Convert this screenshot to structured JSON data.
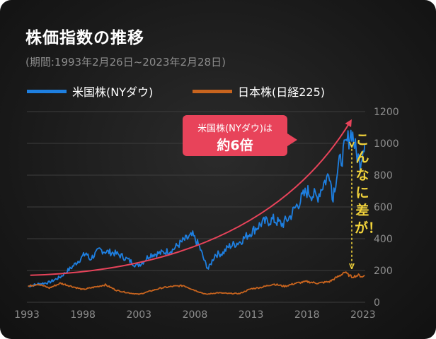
{
  "title": "株価指数の推移",
  "subtitle": "(期間:1993年2月26日~2023年2月28日)",
  "legend": {
    "us": "米国株(NYダウ)",
    "jp": "日本株(日経225)"
  },
  "colors": {
    "background": "#1c1c1c",
    "us": "#1e7fe0",
    "jp": "#c8641e",
    "trend_arrow": "#e8435a",
    "callout": "#e8435a",
    "annotation": "#f2d33b"
  },
  "callout": {
    "line1": "米国株(NYダウ)は",
    "line2": "約6倍"
  },
  "annotation": "こんなに差が！",
  "chart_data": {
    "type": "line",
    "xlim": [
      1993,
      2023.2
    ],
    "ylim": [
      0,
      1200
    ],
    "xticks": [
      1993,
      1998,
      2003,
      2008,
      2013,
      2018,
      2023
    ],
    "yticks": [
      0,
      200,
      400,
      600,
      800,
      1000,
      1200
    ],
    "grid": true,
    "legend_position": "top-left",
    "series": [
      {
        "name": "米国株(NYダウ)",
        "points": [
          [
            1993.1,
            100
          ],
          [
            1994,
            115
          ],
          [
            1995,
            125
          ],
          [
            1996,
            160
          ],
          [
            1997,
            220
          ],
          [
            1998.3,
            310
          ],
          [
            1998.6,
            270
          ],
          [
            1999.5,
            330
          ],
          [
            2000,
            320
          ],
          [
            2000.8,
            310
          ],
          [
            2001.5,
            290
          ],
          [
            2002.2,
            260
          ],
          [
            2002.8,
            230
          ],
          [
            2003.3,
            250
          ],
          [
            2004,
            300
          ],
          [
            2005,
            310
          ],
          [
            2006,
            330
          ],
          [
            2007,
            390
          ],
          [
            2007.8,
            420
          ],
          [
            2008.4,
            350
          ],
          [
            2008.9,
            250
          ],
          [
            2009.2,
            210
          ],
          [
            2009.8,
            300
          ],
          [
            2010.5,
            310
          ],
          [
            2011,
            350
          ],
          [
            2012,
            380
          ],
          [
            2013,
            440
          ],
          [
            2014,
            500
          ],
          [
            2015,
            520
          ],
          [
            2015.8,
            490
          ],
          [
            2016.5,
            540
          ],
          [
            2017,
            600
          ],
          [
            2018,
            700
          ],
          [
            2018.9,
            660
          ],
          [
            2019.5,
            750
          ],
          [
            2020.1,
            820
          ],
          [
            2020.25,
            650
          ],
          [
            2020.8,
            850
          ],
          [
            2021.5,
            990
          ],
          [
            2022,
            1080
          ],
          [
            2022.4,
            940
          ],
          [
            2022.75,
            880
          ],
          [
            2023.1,
            1010
          ],
          [
            2023.15,
            990
          ]
        ]
      },
      {
        "name": "日本株(日経225)",
        "points": [
          [
            1993.1,
            100
          ],
          [
            1994,
            115
          ],
          [
            1995,
            90
          ],
          [
            1996,
            120
          ],
          [
            1997,
            100
          ],
          [
            1998,
            80
          ],
          [
            1999,
            95
          ],
          [
            2000,
            110
          ],
          [
            2001,
            75
          ],
          [
            2002,
            60
          ],
          [
            2003,
            50
          ],
          [
            2004,
            70
          ],
          [
            2005,
            90
          ],
          [
            2006,
            100
          ],
          [
            2007,
            105
          ],
          [
            2008,
            75
          ],
          [
            2009,
            50
          ],
          [
            2010,
            60
          ],
          [
            2011,
            55
          ],
          [
            2012,
            55
          ],
          [
            2013,
            85
          ],
          [
            2014,
            95
          ],
          [
            2015,
            115
          ],
          [
            2016,
            100
          ],
          [
            2017,
            120
          ],
          [
            2018,
            130
          ],
          [
            2019,
            120
          ],
          [
            2020,
            130
          ],
          [
            2021,
            170
          ],
          [
            2021.3,
            190
          ],
          [
            2022,
            160
          ],
          [
            2022.6,
            170
          ],
          [
            2023,
            160
          ],
          [
            2023.15,
            170
          ]
        ]
      }
    ],
    "trend_arrow": {
      "from": [
        1993.3,
        170
      ],
      "to": [
        2021.9,
        1140
      ]
    },
    "gap_marker": {
      "x": 2022,
      "from": 1010,
      "to": 210
    }
  }
}
